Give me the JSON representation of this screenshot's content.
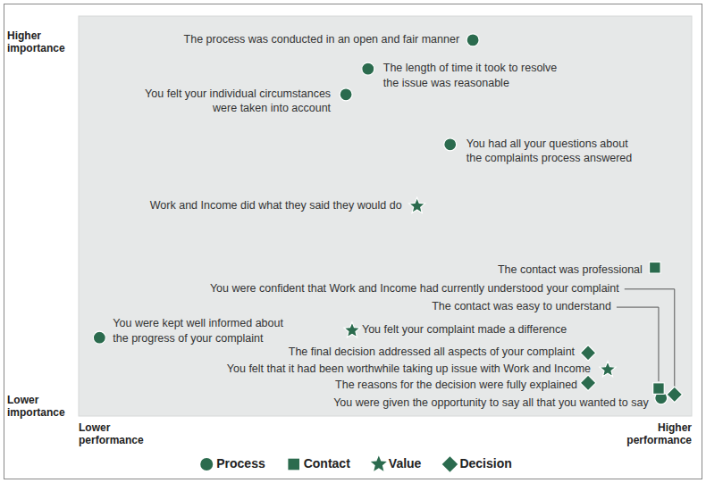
{
  "chart_data": {
    "type": "scatter",
    "xlim": [
      0,
      100
    ],
    "ylim": [
      0,
      100
    ],
    "tick_labels": false,
    "grid": false,
    "legend": "bottom",
    "axis_labels": {
      "y_high": "Higher\nimportance",
      "y_low": "Lower\nimportance",
      "x_low": "Lower\nperformance",
      "x_high": "Higher\nperformance"
    },
    "series": [
      {
        "name": "Process",
        "color": "#2b6b4e",
        "marker": "circle",
        "x": [
          64.3,
          47.2,
          43.6,
          60.6,
          3.4,
          95.0
        ],
        "y": [
          94.0,
          86.8,
          80.4,
          67.9,
          19.6,
          4.5
        ],
        "labels": [
          "The process was conducted in an open and fair manner",
          "The length of time it took to resolve\nthe issue was reasonable",
          "You felt your individual circumstances\nwere taken into account",
          "You had all your questions about\nthe complaints process answered",
          "You were kept well informed about\nthe progress of your complaint",
          "You were given the opportunity to say all that you wanted to say"
        ]
      },
      {
        "name": "Contact",
        "color": "#2b6b4e",
        "marker": "square",
        "x": [
          94.0,
          94.6
        ],
        "y": [
          37.1,
          6.9
        ],
        "labels": [
          "The contact was professional",
          "The contact was easy to understand"
        ]
      },
      {
        "name": "Value",
        "color": "#2b6b4e",
        "marker": "star",
        "x": [
          55.2,
          44.6,
          86.3
        ],
        "y": [
          52.5,
          21.4,
          11.6
        ],
        "labels": [
          "Work and Income did what they said they would do",
          "You felt your complaint made a difference",
          "You felt that it had been worthwhile taking up issue with Work and Income"
        ]
      },
      {
        "name": "Decision",
        "color": "#2b6b4e",
        "marker": "diamond",
        "x": [
          83.1,
          83.1,
          97.2
        ],
        "y": [
          15.8,
          8.3,
          5.4
        ],
        "labels": [
          "The final decision addressed all aspects of your complaint",
          "The reasons for the decision were fully explained",
          "You were confident that Work and Income had currently understood your complaint"
        ]
      }
    ]
  }
}
